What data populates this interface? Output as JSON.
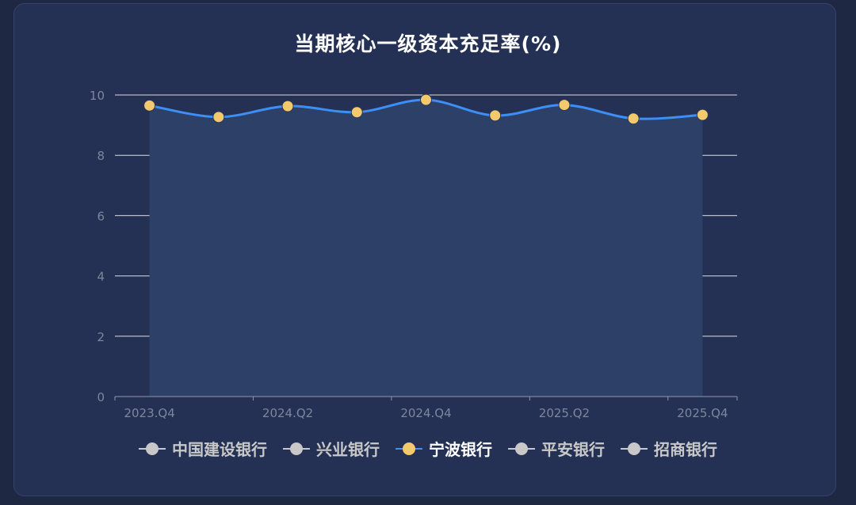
{
  "chart_data": {
    "type": "line",
    "title": "当期核心一级资本充足率(%)",
    "x": [
      "2023.Q4",
      "2024.Q1",
      "2024.Q2",
      "2024.Q3",
      "2024.Q4",
      "2025.Q1",
      "2025.Q2",
      "2025.Q3",
      "2025.Q4"
    ],
    "x_tick_labels": [
      "2023.Q4",
      "2024.Q2",
      "2024.Q4",
      "2025.Q2",
      "2025.Q4"
    ],
    "ylim": [
      0,
      10
    ],
    "y_ticks": [
      0,
      2,
      4,
      6,
      8,
      10
    ],
    "grid": true,
    "legend_position": "bottom",
    "series": [
      {
        "name": "中国建设银行",
        "visible": false,
        "color": "#c8c8c8"
      },
      {
        "name": "兴业银行",
        "visible": false,
        "color": "#c8c8c8"
      },
      {
        "name": "宁波银行",
        "visible": true,
        "color": "#3d8ff5",
        "marker_color": "#f3c96e",
        "values": [
          9.65,
          9.27,
          9.63,
          9.43,
          9.84,
          9.32,
          9.67,
          9.22,
          9.34
        ],
        "area": true
      },
      {
        "name": "平安银行",
        "visible": false,
        "color": "#c8c8c8"
      },
      {
        "name": "招商银行",
        "visible": false,
        "color": "#c8c8c8"
      }
    ]
  },
  "colors": {
    "background": "#1f2843",
    "card": "#253154",
    "grid": "#d9dce4",
    "axis_text": "#7d869c",
    "area_fill": "#2d4168",
    "legend_active_text": "#ffffff",
    "legend_inactive_text": "#c8c8c8"
  }
}
